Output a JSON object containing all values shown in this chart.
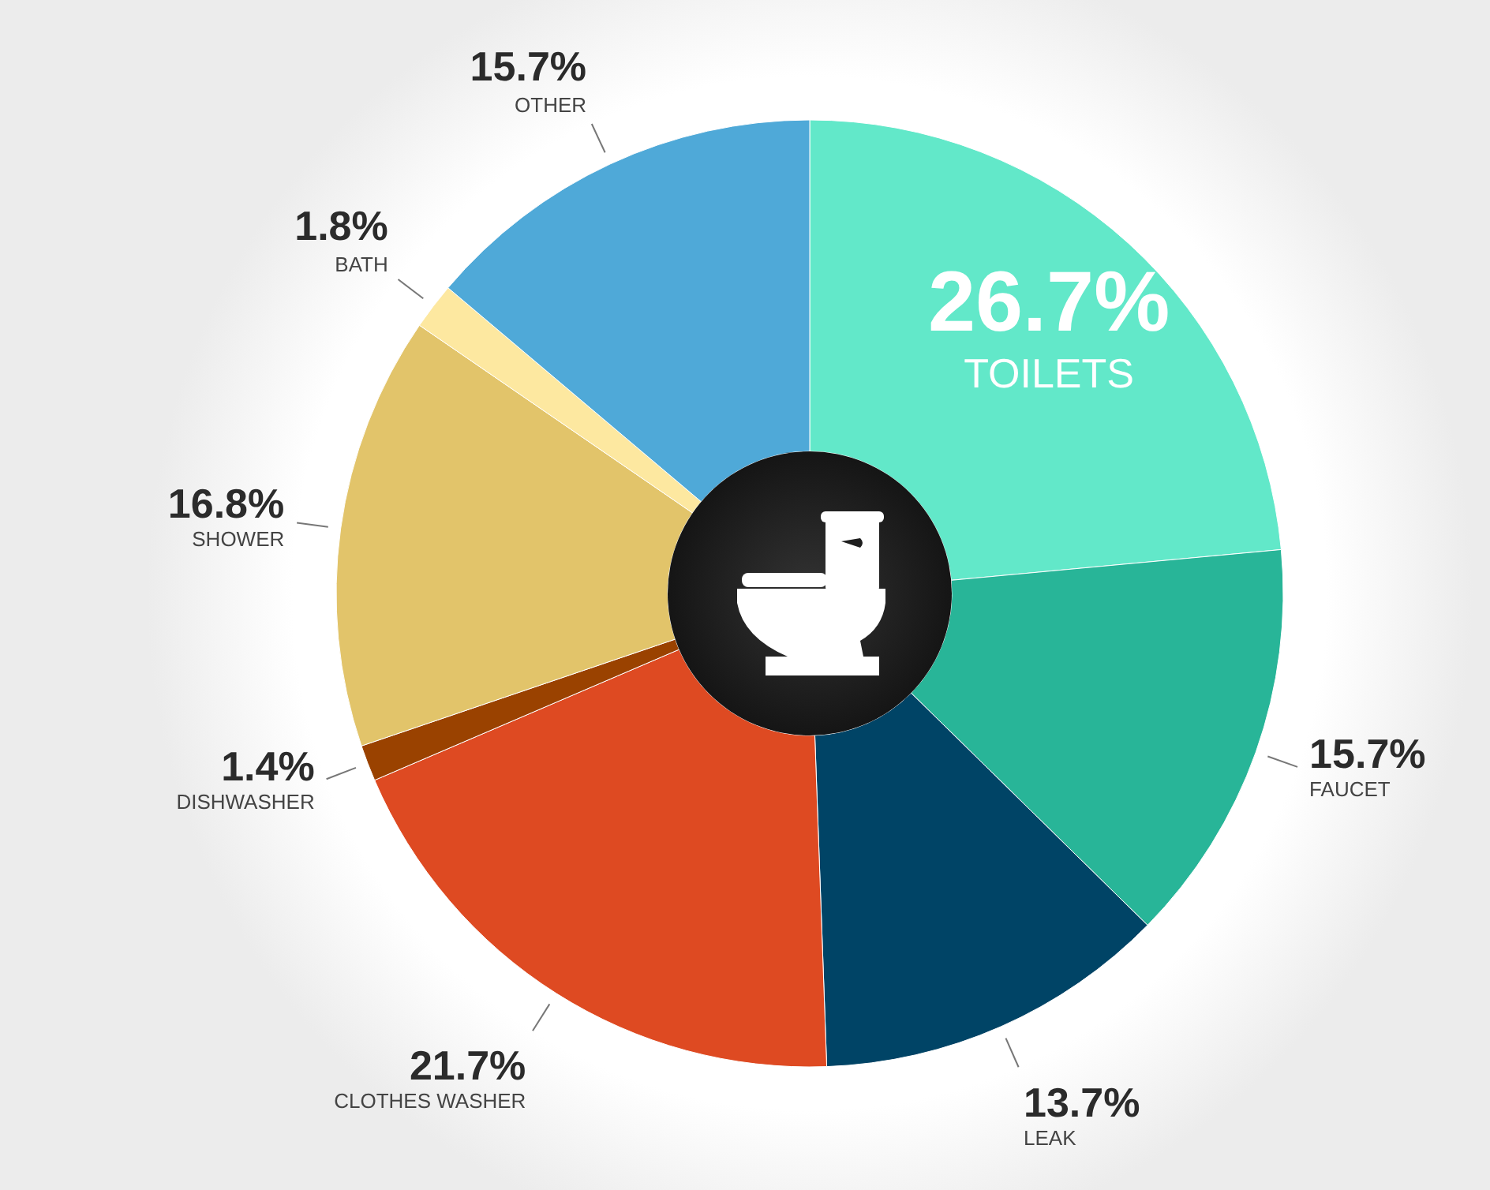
{
  "chart_data": {
    "type": "donut",
    "categories": [
      "TOILETS",
      "FAUCET",
      "LEAK",
      "CLOTHES WASHER",
      "DISHWASHER",
      "SHOWER",
      "BATH",
      "OTHER"
    ],
    "values": [
      26.7,
      15.7,
      13.7,
      21.7,
      1.4,
      16.8,
      1.8,
      15.7
    ],
    "colors": [
      "#62e8c9",
      "#28b598",
      "#004466",
      "#de4a22",
      "#9a4200",
      "#e2c46a",
      "#fde8a0",
      "#4fa9d8"
    ],
    "value_labels": [
      "26.7%",
      "15.7%",
      "13.7%",
      "21.7%",
      "1.4%",
      "16.8%",
      "1.8%",
      "15.7%"
    ]
  }
}
